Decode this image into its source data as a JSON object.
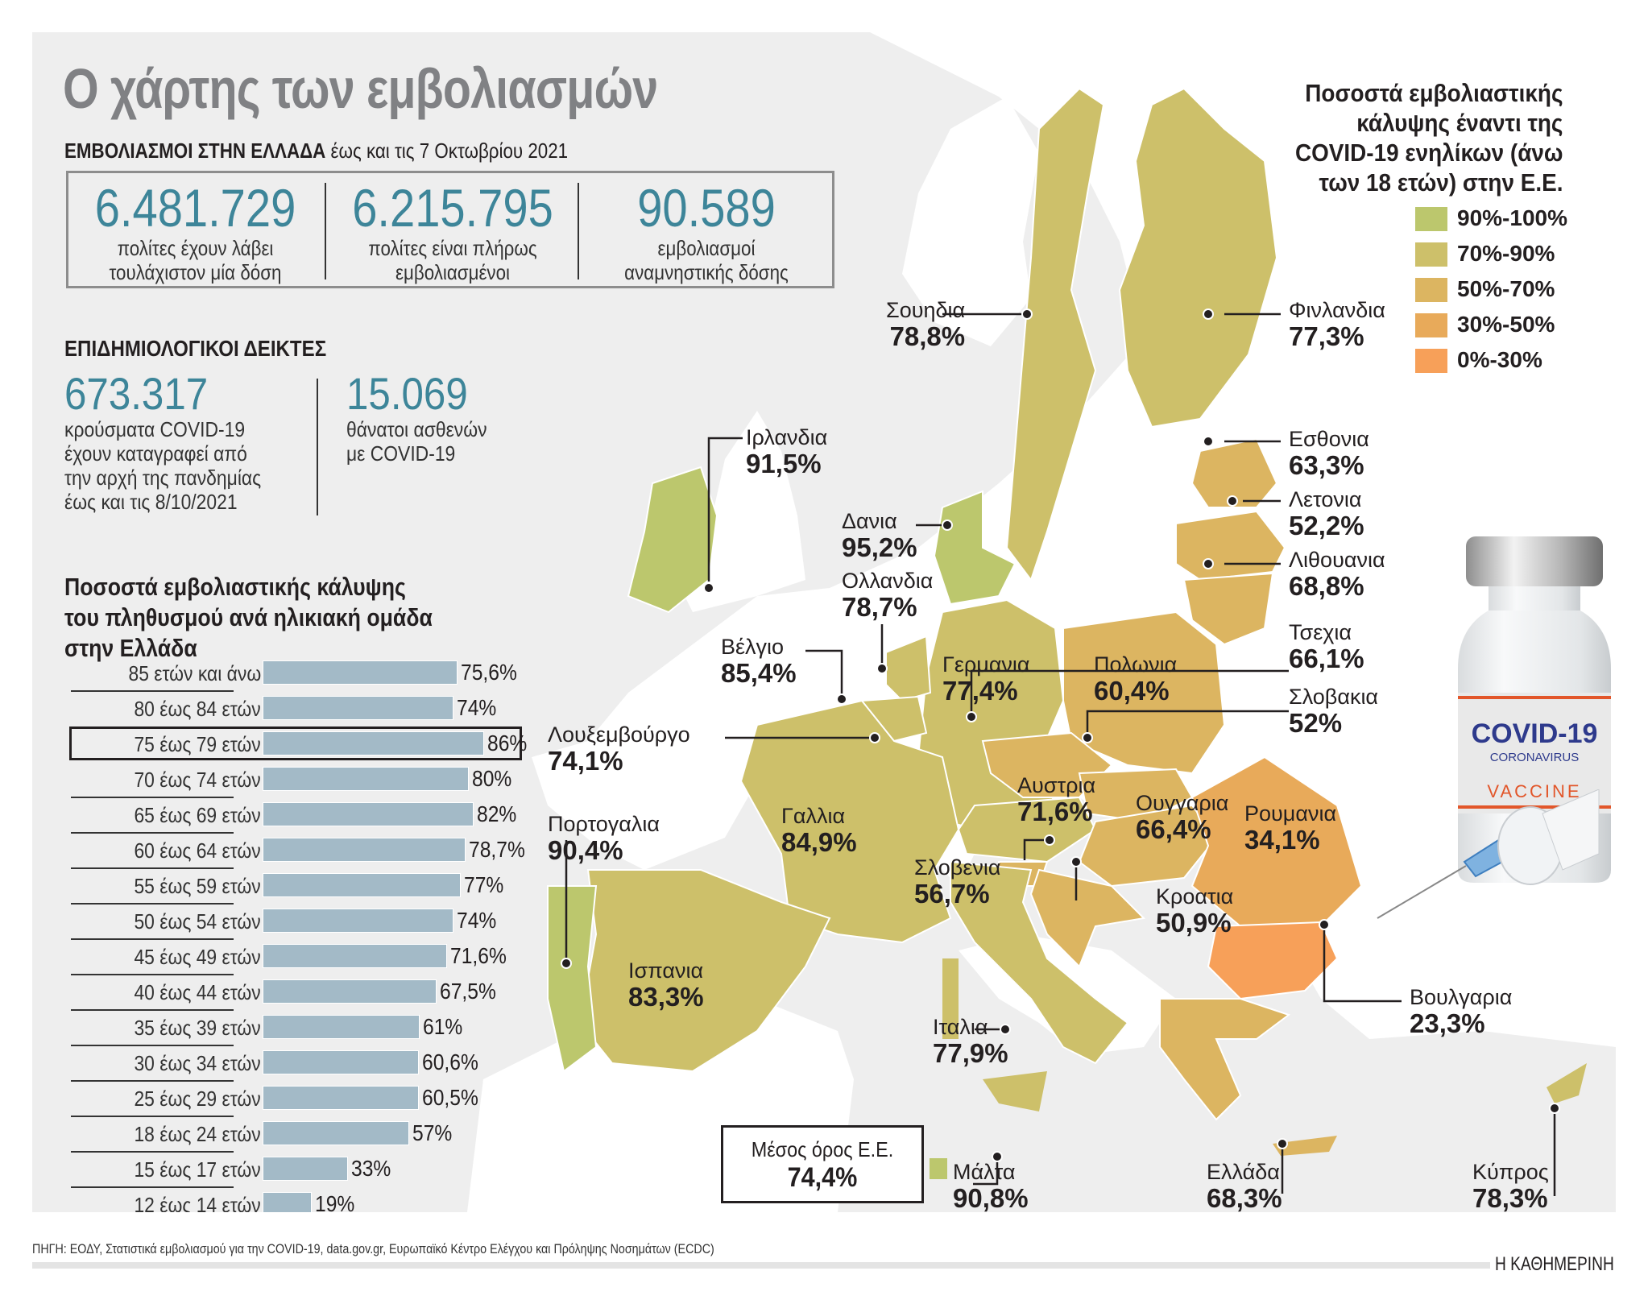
{
  "title": "Ο χάρτης των εμβολιασμών",
  "greece_vaccinations": {
    "heading": "ΕΜΒΟΛΙΑΣΜΟΙ ΣΤΗΝ ΕΛΛΑΔΑ",
    "date_note": "έως και τις 7 Οκτωβρίου 2021",
    "stats": [
      {
        "value": "6.481.729",
        "label_line1": "πολίτες έχουν λάβει",
        "label_line2": "τουλάχιστον μία δόση"
      },
      {
        "value": "6.215.795",
        "label_line1": "πολίτες είναι πλήρως",
        "label_line2": "εμβολιασμένοι"
      },
      {
        "value": "90.589",
        "label_line1": "εμβολιασμοί",
        "label_line2": "αναμνηστικής δόσης"
      }
    ]
  },
  "epidemiological": {
    "heading": "ΕΠΙΔΗΜΙΟΛΟΓΙΚΟΙ ΔΕΙΚΤΕΣ",
    "cases": {
      "value": "673.317",
      "lines": [
        "κρούσματα COVID-19",
        "έχουν καταγραφεί από",
        "την αρχή της πανδημίας",
        "έως και τις 8/10/2021"
      ]
    },
    "deaths": {
      "value": "15.069",
      "lines": [
        "θάνατοι ασθενών",
        "με COVID-19"
      ]
    }
  },
  "age_chart_title": [
    "Ποσοστά εμβολιαστικής κάλυψης",
    "του πληθυσμού ανά ηλικιακή ομάδα",
    "στην Ελλάδα"
  ],
  "chart_data": [
    {
      "type": "bar",
      "orientation": "horizontal",
      "title": "Ποσοστά εμβολιαστικής κάλυψης του πληθυσμού ανά ηλικιακή ομάδα στην Ελλάδα",
      "categories": [
        "85 ετών και άνω",
        "80 έως 84 ετών",
        "75 έως 79 ετών",
        "70 έως 74 ετών",
        "65 έως 69 ετών",
        "60 έως 64 ετών",
        "55 έως 59 ετών",
        "50 έως 54 ετών",
        "45 έως 49 ετών",
        "40 έως 44 ετών",
        "35 έως 39 ετών",
        "30 έως 34 ετών",
        "25 έως 29 ετών",
        "18 έως 24 ετών",
        "15 έως 17 ετών",
        "12 έως 14 ετών"
      ],
      "values": [
        75.6,
        74,
        86,
        80,
        82,
        78.7,
        77,
        74,
        71.6,
        67.5,
        61,
        60.6,
        60.5,
        57,
        33,
        19
      ],
      "value_labels": [
        "75,6%",
        "74%",
        "86%",
        "80%",
        "82%",
        "78,7%",
        "77%",
        "74%",
        "71,6%",
        "67,5%",
        "61%",
        "60,6%",
        "60,5%",
        "57%",
        "33%",
        "19%"
      ],
      "highlighted": "75 έως 79 ετών",
      "bar_color": "#a3bac7",
      "xlabel": "",
      "ylabel": "",
      "xlim": [
        0,
        100
      ]
    },
    {
      "type": "heatmap",
      "subtype": "choropleth-map",
      "title": "Ποσοστά εμβολιαστικής κάλυψης έναντι της COVID-19 ενηλίκων (άνω των 18 ετών) στην Ε.Ε.",
      "legend": [
        {
          "range": "90%-100%",
          "color": "#bcc76d"
        },
        {
          "range": "70%-90%",
          "color": "#cdc06a"
        },
        {
          "range": "50%-70%",
          "color": "#dcb561"
        },
        {
          "range": "30%-50%",
          "color": "#e8aa5a"
        },
        {
          "range": "0%-30%",
          "color": "#f7a059"
        }
      ],
      "countries": [
        {
          "name": "Σουηδια",
          "value": 78.8
        },
        {
          "name": "Φινλανδια",
          "value": 77.3
        },
        {
          "name": "Εσθονια",
          "value": 63.3
        },
        {
          "name": "Λετονια",
          "value": 52.2
        },
        {
          "name": "Λιθουανια",
          "value": 68.8
        },
        {
          "name": "Ιρλανδια",
          "value": 91.5
        },
        {
          "name": "Δανια",
          "value": 95.2
        },
        {
          "name": "Ολλανδια",
          "value": 78.7
        },
        {
          "name": "Βέλγιο",
          "value": 85.4
        },
        {
          "name": "Λουξεμβούργο",
          "value": 74.1
        },
        {
          "name": "Γερμανια",
          "value": 77.4
        },
        {
          "name": "Πολωνια",
          "value": 60.4
        },
        {
          "name": "Τσεχια",
          "value": 66.1
        },
        {
          "name": "Σλοβακια",
          "value": 52
        },
        {
          "name": "Αυστρια",
          "value": 71.6
        },
        {
          "name": "Ουγγαρια",
          "value": 66.4
        },
        {
          "name": "Ρουμανια",
          "value": 34.1
        },
        {
          "name": "Γαλλια",
          "value": 84.9
        },
        {
          "name": "Πορτογαλια",
          "value": 90.4
        },
        {
          "name": "Ισπανια",
          "value": 83.3
        },
        {
          "name": "Σλοβενια",
          "value": 56.7
        },
        {
          "name": "Κροατια",
          "value": 50.9
        },
        {
          "name": "Βουλγαρια",
          "value": 23.3
        },
        {
          "name": "Ιταλια",
          "value": 77.9
        },
        {
          "name": "Μάλτα",
          "value": 90.8
        },
        {
          "name": "Ελλάδα",
          "value": 68.3
        },
        {
          "name": "Κύπρος",
          "value": 78.3
        }
      ],
      "eu_average": 74.4
    }
  ],
  "map": {
    "legend_title": [
      "Ποσοστά εμβολιαστικής",
      "κάλυψης έναντι της",
      "COVID-19 ενηλίκων (άνω",
      "των 18 ετών) στην Ε.Ε."
    ],
    "legend": [
      {
        "label": "90%-100%",
        "color": "#bcc76d"
      },
      {
        "label": "70%-90%",
        "color": "#cdc06a"
      },
      {
        "label": "50%-70%",
        "color": "#dcb561"
      },
      {
        "label": "30%-50%",
        "color": "#e8aa5a"
      },
      {
        "label": "0%-30%",
        "color": "#f7a059"
      }
    ],
    "labels": {
      "sweden": {
        "name": "Σουηδια",
        "value": "78,8%"
      },
      "finland": {
        "name": "Φινλανδια",
        "value": "77,3%"
      },
      "estonia": {
        "name": "Εσθονια",
        "value": "63,3%"
      },
      "latvia": {
        "name": "Λετονια",
        "value": "52,2%"
      },
      "lithuania": {
        "name": "Λιθουανια",
        "value": "68,8%"
      },
      "ireland": {
        "name": "Ιρλανδια",
        "value": "91,5%"
      },
      "denmark": {
        "name": "Δανια",
        "value": "95,2%"
      },
      "netherlands": {
        "name": "Ολλανδια",
        "value": "78,7%"
      },
      "belgium": {
        "name": "Βέλγιο",
        "value": "85,4%"
      },
      "luxembourg": {
        "name": "Λουξεμβούργο",
        "value": "74,1%"
      },
      "germany": {
        "name": "Γερμανια",
        "value": "77,4%"
      },
      "poland": {
        "name": "Πολωνια",
        "value": "60,4%"
      },
      "czechia": {
        "name": "Τσεχια",
        "value": "66,1%"
      },
      "slovakia": {
        "name": "Σλοβακια",
        "value": "52%"
      },
      "austria": {
        "name": "Αυστρια",
        "value": "71,6%"
      },
      "hungary": {
        "name": "Ουγγαρια",
        "value": "66,4%"
      },
      "romania": {
        "name": "Ρουμανια",
        "value": "34,1%"
      },
      "france": {
        "name": "Γαλλια",
        "value": "84,9%"
      },
      "portugal": {
        "name": "Πορτογαλια",
        "value": "90,4%"
      },
      "spain": {
        "name": "Ισπανια",
        "value": "83,3%"
      },
      "slovenia": {
        "name": "Σλοβενια",
        "value": "56,7%"
      },
      "croatia": {
        "name": "Κροατια",
        "value": "50,9%"
      },
      "bulgaria": {
        "name": "Βουλγαρια",
        "value": "23,3%"
      },
      "italy": {
        "name": "Ιταλια",
        "value": "77,9%"
      },
      "malta": {
        "name": "Μάλτα",
        "value": "90,8%"
      },
      "greece": {
        "name": "Ελλάδα",
        "value": "68,3%"
      },
      "cyprus": {
        "name": "Κύπρος",
        "value": "78,3%"
      }
    },
    "eu_average": {
      "label": "Μέσος όρος Ε.Ε.",
      "value": "74,4%"
    },
    "vial": {
      "brand": "COVID-19",
      "sub": "CORONAVIRUS",
      "product": "VACCINE"
    }
  },
  "footer": {
    "source": "ΠΗΓΗ: ΕΟΔΥ, Στατιστικά εμβολιασμού για την COVID-19, data.gov.gr, Ευρωπαϊκό Κέντρο Ελέγχου και Πρόληψης Νοσημάτων (ECDC)",
    "publisher": "Η ΚΑΘΗΜΕΡΙΝΗ"
  }
}
